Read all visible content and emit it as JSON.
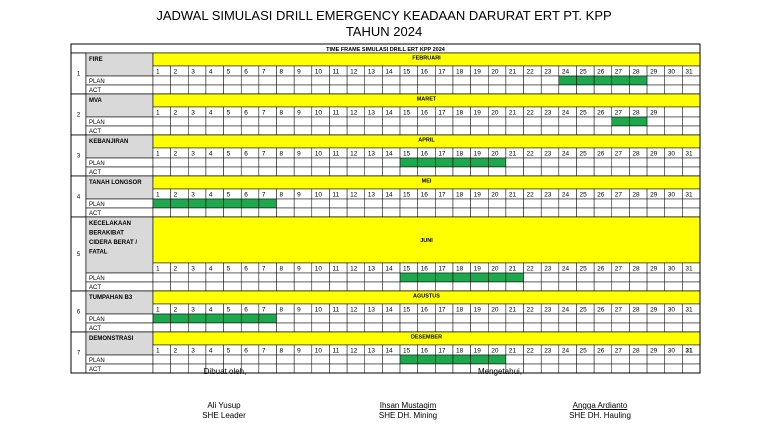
{
  "header": {
    "title_line1": "JADWAL SIMULASI DRILL EMERGENCY KEADAAN DARURAT ERT PT. KPP",
    "title_line2": "TAHUN 2024",
    "timeframe_label": "TIME FRAME SIMULASI DRILL ERT KPP 2024"
  },
  "labels": {
    "plan": "PLAN",
    "act": "ACT"
  },
  "colors": {
    "month_band": "#ffff00",
    "plan_fill": "#1ea84e",
    "label_bg": "#d9d9d9",
    "grid": "#000000"
  },
  "rows": [
    {
      "no": "1",
      "name": [
        "FIRE"
      ],
      "month": "FEBRUARI",
      "days": 31,
      "plan_days": [
        24,
        25,
        26,
        27,
        28
      ]
    },
    {
      "no": "2",
      "name": [
        "MVA"
      ],
      "month": "MARET",
      "days": 29,
      "plan_days": [
        27,
        28
      ]
    },
    {
      "no": "3",
      "name": [
        "KEBANJIRAN"
      ],
      "month": "APRIL",
      "days": 31,
      "plan_days": [
        15,
        16,
        17,
        18,
        19,
        20
      ]
    },
    {
      "no": "4",
      "name": [
        "TANAH LONGSOR"
      ],
      "month": "MEI",
      "days": 31,
      "plan_days": [
        1,
        2,
        3,
        4,
        5,
        6,
        7
      ]
    },
    {
      "no": "5",
      "name": [
        "KECELAKAAN",
        "BERAKIBAT",
        "CIDERA BERAT /",
        "FATAL"
      ],
      "month": "JUNI",
      "days": 31,
      "plan_days": [
        15,
        16,
        17,
        18,
        19,
        20,
        21
      ]
    },
    {
      "no": "6",
      "name": [
        "TUMPAHAN B3"
      ],
      "month": "AGUSTUS",
      "days": 31,
      "plan_days": [
        1,
        2,
        3,
        4,
        5,
        6,
        7
      ]
    },
    {
      "no": "7",
      "name": [
        "DEMONSTRASI"
      ],
      "month": "DESEMBER",
      "days": 31,
      "plan_days": [
        15,
        16,
        17,
        18,
        19,
        20
      ]
    }
  ],
  "signatures": {
    "prepared_label": "Dibuat oleh,",
    "acknowledged_label": "Mengetahui,",
    "people": [
      {
        "name": "Ali Yusup",
        "role": "SHE Leader",
        "underline": false
      },
      {
        "name": "Ihsan Mustaqim",
        "role": "SHE DH. Mining",
        "underline": true
      },
      {
        "name": "Angga Ardianto",
        "role": "SHE DH. Hauling",
        "underline": true
      }
    ]
  }
}
